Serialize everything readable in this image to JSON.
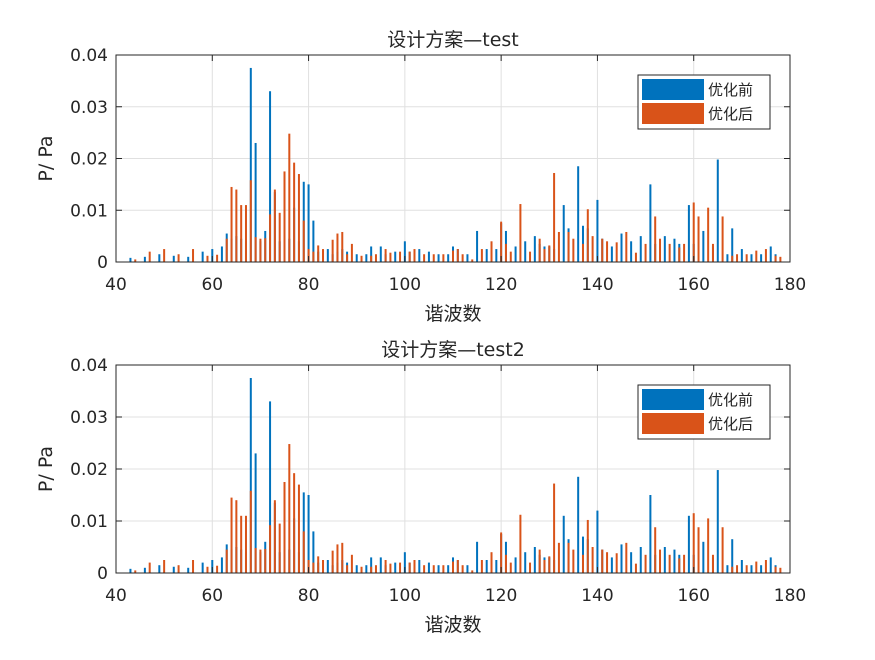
{
  "colors": {
    "before": "#0072BD",
    "after": "#D95319",
    "grid": "#e0e0e0",
    "axis": "#262626"
  },
  "chart_data": [
    {
      "type": "bar",
      "title": "设计方案—test",
      "xlabel": "谐波数",
      "ylabel": "P/ Pa",
      "xlim": [
        40,
        180
      ],
      "ylim": [
        0,
        0.04
      ],
      "xticks": [
        "40",
        "60",
        "80",
        "100",
        "120",
        "140",
        "160",
        "180"
      ],
      "yticks": [
        "0",
        "0.01",
        "0.02",
        "0.03",
        "0.04"
      ],
      "grid": true,
      "legend": "top-right",
      "series": [
        {
          "name": "优化前",
          "x": [
            43,
            46,
            49,
            52,
            55,
            58,
            60,
            62,
            63,
            64,
            65,
            66,
            67,
            68,
            69,
            70,
            71,
            72,
            73,
            74,
            75,
            76,
            77,
            78,
            79,
            80,
            81,
            82,
            84,
            85,
            86,
            87,
            88,
            90,
            92,
            93,
            95,
            96,
            98,
            100,
            101,
            103,
            105,
            107,
            109,
            110,
            111,
            113,
            115,
            117,
            119,
            120,
            121,
            123,
            125,
            127,
            128,
            129,
            130,
            131,
            133,
            134,
            136,
            137,
            138,
            140,
            141,
            143,
            145,
            147,
            149,
            151,
            152,
            154,
            156,
            157,
            159,
            160,
            162,
            164,
            165,
            167,
            168,
            170,
            172,
            174,
            176,
            177
          ],
          "values": [
            0.0008,
            0.001,
            0.0015,
            0.0012,
            0.001,
            0.002,
            0.0025,
            0.003,
            0.0055,
            0.0045,
            0.005,
            0.0045,
            0.004,
            0.0375,
            0.023,
            0.004,
            0.006,
            0.033,
            0.0135,
            0.004,
            0.0055,
            0.0045,
            0.0105,
            0.004,
            0.0155,
            0.015,
            0.008,
            0.002,
            0.0025,
            0.0015,
            0.002,
            0.0025,
            0.002,
            0.0015,
            0.0015,
            0.003,
            0.003,
            0.0015,
            0.002,
            0.004,
            0.002,
            0.0025,
            0.002,
            0.0015,
            0.0015,
            0.003,
            0.0025,
            0.0015,
            0.006,
            0.0025,
            0.0025,
            0.0075,
            0.006,
            0.003,
            0.004,
            0.005,
            0.0035,
            0.003,
            0.003,
            0.0025,
            0.011,
            0.0065,
            0.0185,
            0.007,
            0.0065,
            0.012,
            0.0045,
            0.003,
            0.0055,
            0.004,
            0.005,
            0.015,
            0.0035,
            0.005,
            0.0045,
            0.0035,
            0.011,
            0.0035,
            0.006,
            0.003,
            0.0198,
            0.0015,
            0.0065,
            0.0025,
            0.0015,
            0.0015,
            0.003,
            0.0015
          ]
        },
        {
          "name": "优化后",
          "x": [
            44,
            47,
            50,
            53,
            56,
            59,
            61,
            63,
            64,
            65,
            66,
            67,
            68,
            69,
            70,
            71,
            72,
            73,
            74,
            75,
            76,
            77,
            78,
            79,
            80,
            81,
            82,
            83,
            85,
            86,
            87,
            88,
            89,
            91,
            93,
            94,
            96,
            97,
            99,
            101,
            102,
            104,
            106,
            108,
            110,
            111,
            112,
            114,
            116,
            118,
            120,
            121,
            122,
            124,
            126,
            128,
            129,
            130,
            131,
            132,
            134,
            135,
            137,
            138,
            139,
            141,
            142,
            144,
            146,
            148,
            150,
            152,
            153,
            155,
            157,
            158,
            160,
            161,
            163,
            164,
            166,
            168,
            169,
            171,
            173,
            175,
            177,
            178
          ],
          "values": [
            0.0005,
            0.002,
            0.0025,
            0.0015,
            0.0025,
            0.0012,
            0.0014,
            0.0045,
            0.0145,
            0.014,
            0.011,
            0.011,
            0.0158,
            0.0048,
            0.0045,
            0.0046,
            0.0092,
            0.014,
            0.0095,
            0.0175,
            0.0248,
            0.0192,
            0.017,
            0.008,
            0.0025,
            0.002,
            0.0032,
            0.0025,
            0.0043,
            0.0055,
            0.0058,
            0.0015,
            0.0035,
            0.0012,
            0.0012,
            0.0015,
            0.0025,
            0.0018,
            0.002,
            0.002,
            0.0025,
            0.0015,
            0.0015,
            0.0015,
            0.0022,
            0.0025,
            0.0015,
            0.0005,
            0.0025,
            0.004,
            0.0078,
            0.0035,
            0.002,
            0.0112,
            0.002,
            0.0045,
            0.0025,
            0.0032,
            0.0172,
            0.0058,
            0.0058,
            0.0045,
            0.0035,
            0.0102,
            0.005,
            0.0045,
            0.004,
            0.0038,
            0.0058,
            0.0018,
            0.0035,
            0.0088,
            0.0045,
            0.0035,
            0.0028,
            0.0035,
            0.0115,
            0.0088,
            0.0105,
            0.0035,
            0.0088,
            0.0012,
            0.0015,
            0.0015,
            0.0022,
            0.0025,
            0.0012,
            0.001
          ]
        }
      ]
    },
    {
      "type": "bar",
      "title": "设计方案—test2",
      "xlabel": "谐波数",
      "ylabel": "P/ Pa",
      "xlim": [
        40,
        180
      ],
      "ylim": [
        0,
        0.04
      ],
      "xticks": [
        "40",
        "60",
        "80",
        "100",
        "120",
        "140",
        "160",
        "180"
      ],
      "yticks": [
        "0",
        "0.01",
        "0.02",
        "0.03",
        "0.04"
      ],
      "grid": true,
      "legend": "top-right",
      "series": [
        {
          "name": "优化前",
          "x": [
            43,
            46,
            49,
            52,
            55,
            58,
            60,
            62,
            63,
            64,
            65,
            66,
            67,
            68,
            69,
            70,
            71,
            72,
            73,
            74,
            75,
            76,
            77,
            78,
            79,
            80,
            81,
            82,
            84,
            85,
            86,
            87,
            88,
            90,
            92,
            93,
            95,
            96,
            98,
            100,
            101,
            103,
            105,
            107,
            109,
            110,
            111,
            113,
            115,
            117,
            119,
            120,
            121,
            123,
            125,
            127,
            128,
            129,
            130,
            131,
            133,
            134,
            136,
            137,
            138,
            140,
            141,
            143,
            145,
            147,
            149,
            151,
            152,
            154,
            156,
            157,
            159,
            160,
            162,
            164,
            165,
            167,
            168,
            170,
            172,
            174,
            176,
            177
          ],
          "values": [
            0.0008,
            0.001,
            0.0015,
            0.0012,
            0.001,
            0.002,
            0.0025,
            0.003,
            0.0055,
            0.0045,
            0.005,
            0.0045,
            0.004,
            0.0375,
            0.023,
            0.004,
            0.006,
            0.033,
            0.0135,
            0.004,
            0.0055,
            0.0045,
            0.0105,
            0.004,
            0.0155,
            0.015,
            0.008,
            0.002,
            0.0025,
            0.0015,
            0.002,
            0.0025,
            0.002,
            0.0015,
            0.0015,
            0.003,
            0.003,
            0.0015,
            0.002,
            0.004,
            0.002,
            0.0025,
            0.002,
            0.0015,
            0.0015,
            0.003,
            0.0025,
            0.0015,
            0.006,
            0.0025,
            0.0025,
            0.0075,
            0.006,
            0.003,
            0.004,
            0.005,
            0.0035,
            0.003,
            0.003,
            0.0025,
            0.011,
            0.0065,
            0.0185,
            0.007,
            0.0065,
            0.012,
            0.0045,
            0.003,
            0.0055,
            0.004,
            0.005,
            0.015,
            0.0035,
            0.005,
            0.0045,
            0.0035,
            0.011,
            0.0035,
            0.006,
            0.003,
            0.0198,
            0.0015,
            0.0065,
            0.0025,
            0.0015,
            0.0015,
            0.003,
            0.0015
          ]
        },
        {
          "name": "优化后",
          "x": [
            44,
            47,
            50,
            53,
            56,
            59,
            61,
            63,
            64,
            65,
            66,
            67,
            68,
            69,
            70,
            71,
            72,
            73,
            74,
            75,
            76,
            77,
            78,
            79,
            80,
            81,
            82,
            83,
            85,
            86,
            87,
            88,
            89,
            91,
            93,
            94,
            96,
            97,
            99,
            101,
            102,
            104,
            106,
            108,
            110,
            111,
            112,
            114,
            116,
            118,
            120,
            121,
            122,
            124,
            126,
            128,
            129,
            130,
            131,
            132,
            134,
            135,
            137,
            138,
            139,
            141,
            142,
            144,
            146,
            148,
            150,
            152,
            153,
            155,
            157,
            158,
            160,
            161,
            163,
            164,
            166,
            168,
            169,
            171,
            173,
            175,
            177,
            178
          ],
          "values": [
            0.0005,
            0.002,
            0.0025,
            0.0015,
            0.0025,
            0.0012,
            0.0014,
            0.0045,
            0.0145,
            0.014,
            0.011,
            0.011,
            0.0158,
            0.0048,
            0.0045,
            0.0046,
            0.0092,
            0.014,
            0.0095,
            0.0175,
            0.0248,
            0.0192,
            0.017,
            0.008,
            0.0025,
            0.002,
            0.0032,
            0.0025,
            0.0043,
            0.0055,
            0.0058,
            0.0015,
            0.0035,
            0.0012,
            0.0012,
            0.0015,
            0.0025,
            0.0018,
            0.002,
            0.002,
            0.0025,
            0.0015,
            0.0015,
            0.0015,
            0.0022,
            0.0025,
            0.0015,
            0.0005,
            0.0025,
            0.004,
            0.0078,
            0.0035,
            0.002,
            0.0112,
            0.002,
            0.0045,
            0.0025,
            0.0032,
            0.0172,
            0.0058,
            0.0058,
            0.0045,
            0.0035,
            0.0102,
            0.005,
            0.0045,
            0.004,
            0.0038,
            0.0058,
            0.0018,
            0.0035,
            0.0088,
            0.0045,
            0.0035,
            0.0028,
            0.0035,
            0.0115,
            0.0088,
            0.0105,
            0.0035,
            0.0088,
            0.0012,
            0.0015,
            0.0015,
            0.0022,
            0.0025,
            0.0012,
            0.001
          ]
        }
      ]
    }
  ]
}
